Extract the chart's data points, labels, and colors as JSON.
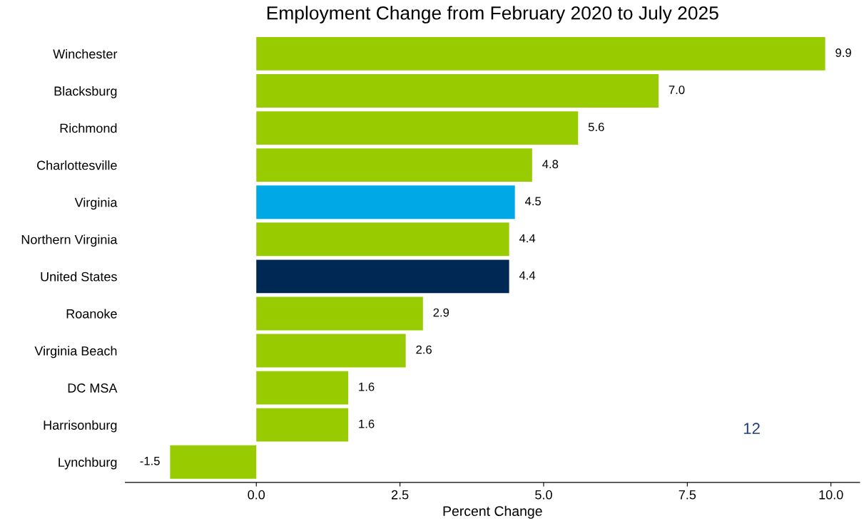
{
  "chart_data": {
    "type": "bar",
    "orientation": "horizontal",
    "title": "Employment Change from February 2020 to July 2025",
    "xlabel": "Percent Change",
    "categories": [
      "Winchester",
      "Blacksburg",
      "Richmond",
      "Charlottesville",
      "Virginia",
      "Northern Virginia",
      "United States",
      "Roanoke",
      "Virginia Beach",
      "DC MSA",
      "Harrisonburg",
      "Lynchburg"
    ],
    "values": [
      9.9,
      7.0,
      5.6,
      4.8,
      4.5,
      4.4,
      4.4,
      2.9,
      2.6,
      1.6,
      1.6,
      -1.5
    ],
    "value_labels": [
      "9.9",
      "7.0",
      "5.6",
      "4.8",
      "4.5",
      "4.4",
      "4.4",
      "2.9",
      "2.6",
      "1.6",
      "1.6",
      "-1.5"
    ],
    "colors": [
      "#99cc00",
      "#99cc00",
      "#99cc00",
      "#99cc00",
      "#00a9e6",
      "#99cc00",
      "#002855",
      "#99cc00",
      "#99cc00",
      "#99cc00",
      "#99cc00",
      "#99cc00"
    ],
    "xlim": [
      -2.28,
      10.5
    ],
    "xticks": [
      {
        "value": 0,
        "label": "0.0"
      },
      {
        "value": 2.5,
        "label": "2.5"
      },
      {
        "value": 5,
        "label": "5.0"
      },
      {
        "value": 7.5,
        "label": "7.5"
      },
      {
        "value": 10,
        "label": "10.0"
      }
    ],
    "grid": false,
    "legend": false,
    "annotations": [
      "12"
    ]
  }
}
